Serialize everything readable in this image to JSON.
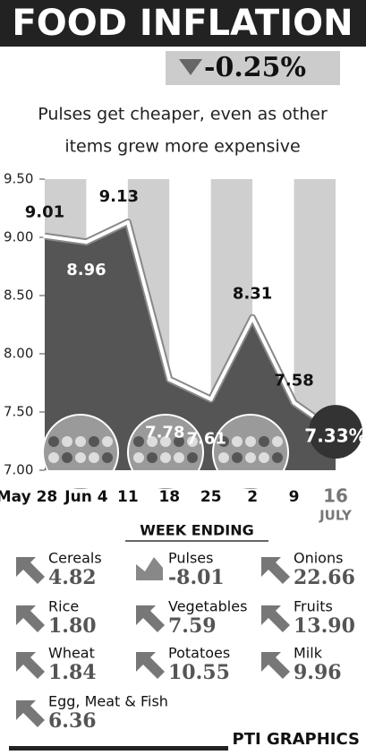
{
  "chart_data": {
    "type": "area",
    "title": "FOOD INFLATION",
    "headline_change": "-0.25%",
    "subtitle": [
      "Pulses get cheaper, even as other",
      "items grew more expensive"
    ],
    "categories": [
      "May 28",
      "Jun 4",
      "11",
      "18",
      "25",
      "2",
      "9",
      "16"
    ],
    "last_category_month": "JULY",
    "x_label": "WEEK ENDING",
    "values": [
      9.01,
      8.96,
      9.13,
      7.78,
      7.61,
      8.31,
      7.58,
      7.33
    ],
    "value_labels": [
      "9.01",
      "8.96",
      "9.13",
      "7.78",
      "7.61",
      "8.31",
      "7.58",
      "7.33%"
    ],
    "color": "#555555",
    "ylim": [
      7.0,
      9.5
    ],
    "yticks": [
      {
        "value": 7.0,
        "label": "7.00"
      },
      {
        "value": 7.5,
        "label": "7.50"
      },
      {
        "value": 8.0,
        "label": "8.00"
      },
      {
        "value": 8.5,
        "label": "8.50"
      },
      {
        "value": 9.0,
        "label": "9.00"
      },
      {
        "value": 9.5,
        "label": "9.50"
      }
    ],
    "grid": false
  },
  "items": [
    {
      "name": "Cereals",
      "value": "4.82",
      "direction": "up"
    },
    {
      "name": "Pulses",
      "value": "-8.01",
      "direction": "down"
    },
    {
      "name": "Onions",
      "value": "22.66",
      "direction": "up"
    },
    {
      "name": "Rice",
      "value": "1.80",
      "direction": "up"
    },
    {
      "name": "Vegetables",
      "value": "7.59",
      "direction": "up"
    },
    {
      "name": "Fruits",
      "value": "13.90",
      "direction": "up"
    },
    {
      "name": "Wheat",
      "value": "1.84",
      "direction": "up"
    },
    {
      "name": "Potatoes",
      "value": "10.55",
      "direction": "up"
    },
    {
      "name": "Milk",
      "value": "9.96",
      "direction": "up"
    },
    {
      "name": "Egg, Meat & Fish",
      "value": "6.36",
      "direction": "up"
    }
  ],
  "credit": "PTI GRAPHICS"
}
